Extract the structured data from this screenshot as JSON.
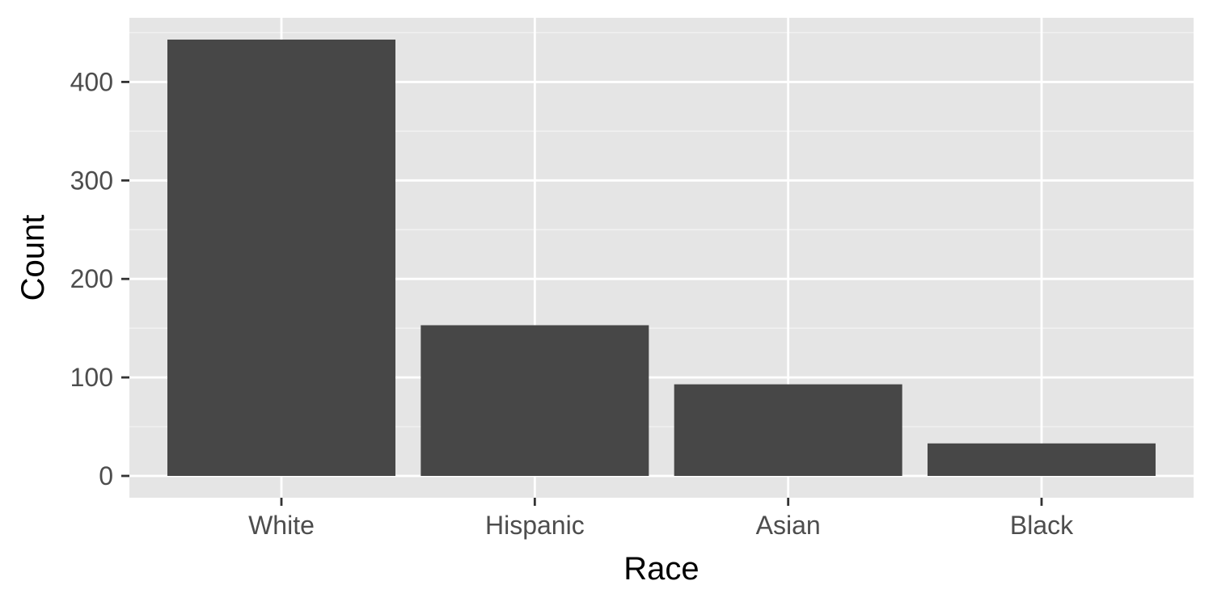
{
  "chart_data": {
    "type": "bar",
    "categories": [
      "White",
      "Hispanic",
      "Asian",
      "Black"
    ],
    "values": [
      443,
      153,
      93,
      33
    ],
    "xlabel": "Race",
    "ylabel": "Count",
    "ylim": [
      -22.15,
      465.15
    ],
    "yticks": [
      0,
      100,
      200,
      300,
      400
    ],
    "ytick_labels": [
      "0",
      "100",
      "200",
      "300",
      "400"
    ],
    "grid": true,
    "legend": "none",
    "colors": {
      "bar": "#474747",
      "panel_background": "#e5e5e5",
      "grid_major": "#ffffff",
      "grid_minor": "#f2f2f2",
      "tick_mark": "#333333",
      "tick_text": "#4d4d4d"
    }
  }
}
